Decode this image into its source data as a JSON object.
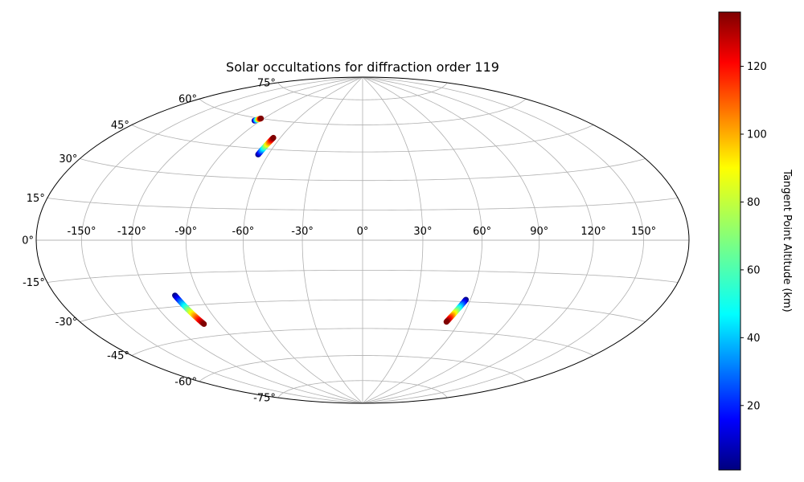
{
  "chart_data": {
    "type": "scatter",
    "projection": "hammer",
    "title": "Solar occultations for diffraction order 119",
    "longitude_ticks": [
      -150,
      -120,
      -90,
      -60,
      -30,
      0,
      30,
      60,
      90,
      120,
      150
    ],
    "latitude_ticks": [
      -75,
      -60,
      -45,
      -30,
      -15,
      0,
      15,
      30,
      45,
      60,
      75
    ],
    "longitude_tick_labels": [
      "-150°",
      "-120°",
      "-90°",
      "-60°",
      "-30°",
      "0°",
      "30°",
      "60°",
      "90°",
      "120°",
      "150°"
    ],
    "latitude_tick_labels": [
      "-75°",
      "-60°",
      "-45°",
      "-30°",
      "-15°",
      "0°",
      "15°",
      "30°",
      "45°",
      "60°",
      "75°"
    ],
    "grid": true,
    "colormap": "jet",
    "colorbar": {
      "label": "Tangent Point Altitude (km)",
      "range": [
        1,
        136
      ],
      "ticks": [
        20,
        40,
        60,
        80,
        100,
        120
      ],
      "tick_labels": [
        "20",
        "40",
        "60",
        "80",
        "100",
        "120"
      ]
    },
    "tracks": [
      {
        "lon_start": -95.0,
        "lat_start": 58.5,
        "lon_end": -92.5,
        "lat_end": 60.0,
        "alt_start": 1,
        "alt_end": 136,
        "points": 14
      },
      {
        "lon_start": -66.5,
        "lat_start": 42.0,
        "lon_end": -65.0,
        "lat_end": 51.0,
        "alt_start": 1,
        "alt_end": 136,
        "points": 30
      },
      {
        "lon_start": -104.5,
        "lat_start": -25.0,
        "lon_end": -100.0,
        "lat_end": -39.0,
        "alt_start": 1,
        "alt_end": 136,
        "points": 40
      },
      {
        "lon_start": 57.5,
        "lat_start": -29.0,
        "lon_end": 52.0,
        "lat_end": -40.5,
        "alt_start": 1,
        "alt_end": 136,
        "points": 36
      }
    ]
  }
}
